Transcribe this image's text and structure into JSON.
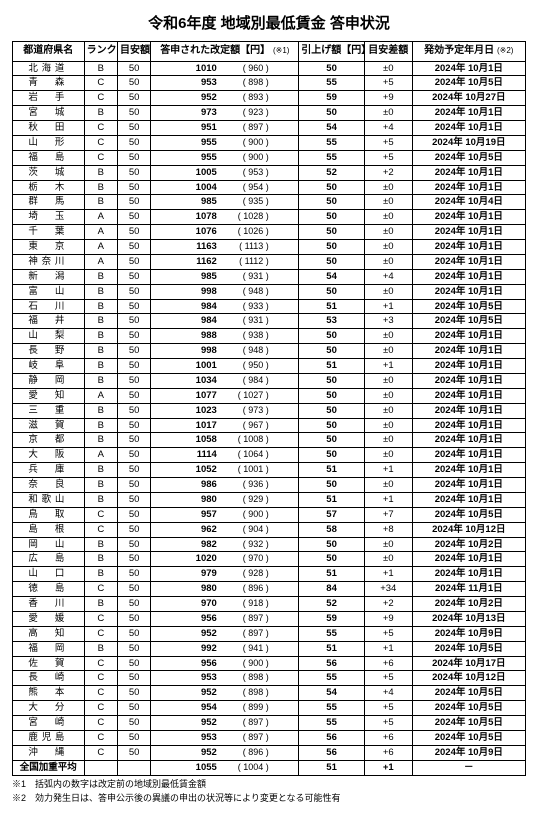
{
  "title": "令和6年度 地域別最低賃金 答申状況",
  "headers": {
    "pref": "都道府県名",
    "rank": "ランク",
    "meyasu": "目安額",
    "revised": "答申された改定額【円】",
    "revised_note": "(※1)",
    "raise": "引上げ額【円】",
    "diff": "目安差額",
    "date": "発効予定年月日",
    "date_note": "(※2)"
  },
  "rows": [
    {
      "pref": "北海道",
      "rank": "B",
      "meyasu": "50",
      "revised": "1010",
      "prev": "960",
      "raise": "50",
      "diff": "±0",
      "date": "2024年 10月1日"
    },
    {
      "pref": "青　森",
      "rank": "C",
      "meyasu": "50",
      "revised": "953",
      "prev": "898",
      "raise": "55",
      "diff": "+5",
      "date": "2024年 10月5日"
    },
    {
      "pref": "岩　手",
      "rank": "C",
      "meyasu": "50",
      "revised": "952",
      "prev": "893",
      "raise": "59",
      "diff": "+9",
      "date": "2024年 10月27日"
    },
    {
      "pref": "宮　城",
      "rank": "B",
      "meyasu": "50",
      "revised": "973",
      "prev": "923",
      "raise": "50",
      "diff": "±0",
      "date": "2024年 10月1日"
    },
    {
      "pref": "秋　田",
      "rank": "C",
      "meyasu": "50",
      "revised": "951",
      "prev": "897",
      "raise": "54",
      "diff": "+4",
      "date": "2024年 10月1日"
    },
    {
      "pref": "山　形",
      "rank": "C",
      "meyasu": "50",
      "revised": "955",
      "prev": "900",
      "raise": "55",
      "diff": "+5",
      "date": "2024年 10月19日"
    },
    {
      "pref": "福　島",
      "rank": "C",
      "meyasu": "50",
      "revised": "955",
      "prev": "900",
      "raise": "55",
      "diff": "+5",
      "date": "2024年 10月5日"
    },
    {
      "pref": "茨　城",
      "rank": "B",
      "meyasu": "50",
      "revised": "1005",
      "prev": "953",
      "raise": "52",
      "diff": "+2",
      "date": "2024年 10月1日"
    },
    {
      "pref": "栃　木",
      "rank": "B",
      "meyasu": "50",
      "revised": "1004",
      "prev": "954",
      "raise": "50",
      "diff": "±0",
      "date": "2024年 10月1日"
    },
    {
      "pref": "群　馬",
      "rank": "B",
      "meyasu": "50",
      "revised": "985",
      "prev": "935",
      "raise": "50",
      "diff": "±0",
      "date": "2024年 10月4日"
    },
    {
      "pref": "埼　玉",
      "rank": "A",
      "meyasu": "50",
      "revised": "1078",
      "prev": "1028",
      "raise": "50",
      "diff": "±0",
      "date": "2024年 10月1日"
    },
    {
      "pref": "千　葉",
      "rank": "A",
      "meyasu": "50",
      "revised": "1076",
      "prev": "1026",
      "raise": "50",
      "diff": "±0",
      "date": "2024年 10月1日"
    },
    {
      "pref": "東　京",
      "rank": "A",
      "meyasu": "50",
      "revised": "1163",
      "prev": "1113",
      "raise": "50",
      "diff": "±0",
      "date": "2024年 10月1日"
    },
    {
      "pref": "神奈川",
      "rank": "A",
      "meyasu": "50",
      "revised": "1162",
      "prev": "1112",
      "raise": "50",
      "diff": "±0",
      "date": "2024年 10月1日"
    },
    {
      "pref": "新　潟",
      "rank": "B",
      "meyasu": "50",
      "revised": "985",
      "prev": "931",
      "raise": "54",
      "diff": "+4",
      "date": "2024年 10月1日"
    },
    {
      "pref": "富　山",
      "rank": "B",
      "meyasu": "50",
      "revised": "998",
      "prev": "948",
      "raise": "50",
      "diff": "±0",
      "date": "2024年 10月1日"
    },
    {
      "pref": "石　川",
      "rank": "B",
      "meyasu": "50",
      "revised": "984",
      "prev": "933",
      "raise": "51",
      "diff": "+1",
      "date": "2024年 10月5日"
    },
    {
      "pref": "福　井",
      "rank": "B",
      "meyasu": "50",
      "revised": "984",
      "prev": "931",
      "raise": "53",
      "diff": "+3",
      "date": "2024年 10月5日"
    },
    {
      "pref": "山　梨",
      "rank": "B",
      "meyasu": "50",
      "revised": "988",
      "prev": "938",
      "raise": "50",
      "diff": "±0",
      "date": "2024年 10月1日"
    },
    {
      "pref": "長　野",
      "rank": "B",
      "meyasu": "50",
      "revised": "998",
      "prev": "948",
      "raise": "50",
      "diff": "±0",
      "date": "2024年 10月1日"
    },
    {
      "pref": "岐　阜",
      "rank": "B",
      "meyasu": "50",
      "revised": "1001",
      "prev": "950",
      "raise": "51",
      "diff": "+1",
      "date": "2024年 10月1日"
    },
    {
      "pref": "静　岡",
      "rank": "B",
      "meyasu": "50",
      "revised": "1034",
      "prev": "984",
      "raise": "50",
      "diff": "±0",
      "date": "2024年 10月1日"
    },
    {
      "pref": "愛　知",
      "rank": "A",
      "meyasu": "50",
      "revised": "1077",
      "prev": "1027",
      "raise": "50",
      "diff": "±0",
      "date": "2024年 10月1日"
    },
    {
      "pref": "三　重",
      "rank": "B",
      "meyasu": "50",
      "revised": "1023",
      "prev": "973",
      "raise": "50",
      "diff": "±0",
      "date": "2024年 10月1日"
    },
    {
      "pref": "滋　賀",
      "rank": "B",
      "meyasu": "50",
      "revised": "1017",
      "prev": "967",
      "raise": "50",
      "diff": "±0",
      "date": "2024年 10月1日"
    },
    {
      "pref": "京　都",
      "rank": "B",
      "meyasu": "50",
      "revised": "1058",
      "prev": "1008",
      "raise": "50",
      "diff": "±0",
      "date": "2024年 10月1日"
    },
    {
      "pref": "大　阪",
      "rank": "A",
      "meyasu": "50",
      "revised": "1114",
      "prev": "1064",
      "raise": "50",
      "diff": "±0",
      "date": "2024年 10月1日"
    },
    {
      "pref": "兵　庫",
      "rank": "B",
      "meyasu": "50",
      "revised": "1052",
      "prev": "1001",
      "raise": "51",
      "diff": "+1",
      "date": "2024年 10月1日"
    },
    {
      "pref": "奈　良",
      "rank": "B",
      "meyasu": "50",
      "revised": "986",
      "prev": "936",
      "raise": "50",
      "diff": "±0",
      "date": "2024年 10月1日"
    },
    {
      "pref": "和歌山",
      "rank": "B",
      "meyasu": "50",
      "revised": "980",
      "prev": "929",
      "raise": "51",
      "diff": "+1",
      "date": "2024年 10月1日"
    },
    {
      "pref": "鳥　取",
      "rank": "C",
      "meyasu": "50",
      "revised": "957",
      "prev": "900",
      "raise": "57",
      "diff": "+7",
      "date": "2024年 10月5日"
    },
    {
      "pref": "島　根",
      "rank": "C",
      "meyasu": "50",
      "revised": "962",
      "prev": "904",
      "raise": "58",
      "diff": "+8",
      "date": "2024年 10月12日"
    },
    {
      "pref": "岡　山",
      "rank": "B",
      "meyasu": "50",
      "revised": "982",
      "prev": "932",
      "raise": "50",
      "diff": "±0",
      "date": "2024年 10月2日"
    },
    {
      "pref": "広　島",
      "rank": "B",
      "meyasu": "50",
      "revised": "1020",
      "prev": "970",
      "raise": "50",
      "diff": "±0",
      "date": "2024年 10月1日"
    },
    {
      "pref": "山　口",
      "rank": "B",
      "meyasu": "50",
      "revised": "979",
      "prev": "928",
      "raise": "51",
      "diff": "+1",
      "date": "2024年 10月1日"
    },
    {
      "pref": "徳　島",
      "rank": "C",
      "meyasu": "50",
      "revised": "980",
      "prev": "896",
      "raise": "84",
      "diff": "+34",
      "date": "2024年 11月1日"
    },
    {
      "pref": "香　川",
      "rank": "B",
      "meyasu": "50",
      "revised": "970",
      "prev": "918",
      "raise": "52",
      "diff": "+2",
      "date": "2024年 10月2日"
    },
    {
      "pref": "愛　媛",
      "rank": "C",
      "meyasu": "50",
      "revised": "956",
      "prev": "897",
      "raise": "59",
      "diff": "+9",
      "date": "2024年 10月13日"
    },
    {
      "pref": "高　知",
      "rank": "C",
      "meyasu": "50",
      "revised": "952",
      "prev": "897",
      "raise": "55",
      "diff": "+5",
      "date": "2024年 10月9日"
    },
    {
      "pref": "福　岡",
      "rank": "B",
      "meyasu": "50",
      "revised": "992",
      "prev": "941",
      "raise": "51",
      "diff": "+1",
      "date": "2024年 10月5日"
    },
    {
      "pref": "佐　賀",
      "rank": "C",
      "meyasu": "50",
      "revised": "956",
      "prev": "900",
      "raise": "56",
      "diff": "+6",
      "date": "2024年 10月17日"
    },
    {
      "pref": "長　崎",
      "rank": "C",
      "meyasu": "50",
      "revised": "953",
      "prev": "898",
      "raise": "55",
      "diff": "+5",
      "date": "2024年 10月12日"
    },
    {
      "pref": "熊　本",
      "rank": "C",
      "meyasu": "50",
      "revised": "952",
      "prev": "898",
      "raise": "54",
      "diff": "+4",
      "date": "2024年 10月5日"
    },
    {
      "pref": "大　分",
      "rank": "C",
      "meyasu": "50",
      "revised": "954",
      "prev": "899",
      "raise": "55",
      "diff": "+5",
      "date": "2024年 10月5日"
    },
    {
      "pref": "宮　崎",
      "rank": "C",
      "meyasu": "50",
      "revised": "952",
      "prev": "897",
      "raise": "55",
      "diff": "+5",
      "date": "2024年 10月5日"
    },
    {
      "pref": "鹿児島",
      "rank": "C",
      "meyasu": "50",
      "revised": "953",
      "prev": "897",
      "raise": "56",
      "diff": "+6",
      "date": "2024年 10月5日"
    },
    {
      "pref": "沖　縄",
      "rank": "C",
      "meyasu": "50",
      "revised": "952",
      "prev": "896",
      "raise": "56",
      "diff": "+6",
      "date": "2024年 10月9日"
    }
  ],
  "average": {
    "label": "全国加重平均",
    "revised": "1055",
    "prev": "1004",
    "raise": "51",
    "diff": "+1",
    "date": "－"
  },
  "notes": {
    "n1": "※1　括弧内の数字は改定前の地域別最低賃金額",
    "n2": "※2　効力発生日は、答申公示後の異議の申出の状況等により変更となる可能性有"
  }
}
